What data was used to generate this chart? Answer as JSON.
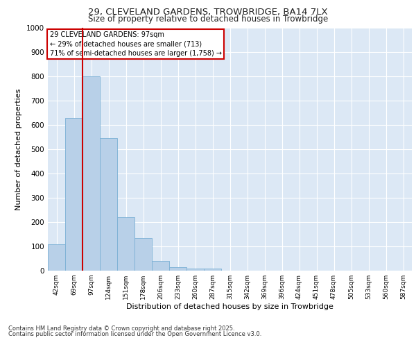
{
  "title_line1": "29, CLEVELAND GARDENS, TROWBRIDGE, BA14 7LX",
  "title_line2": "Size of property relative to detached houses in Trowbridge",
  "xlabel": "Distribution of detached houses by size in Trowbridge",
  "ylabel": "Number of detached properties",
  "categories": [
    "42sqm",
    "69sqm",
    "97sqm",
    "124sqm",
    "151sqm",
    "178sqm",
    "206sqm",
    "233sqm",
    "260sqm",
    "287sqm",
    "315sqm",
    "342sqm",
    "369sqm",
    "396sqm",
    "424sqm",
    "451sqm",
    "478sqm",
    "505sqm",
    "533sqm",
    "560sqm",
    "587sqm"
  ],
  "values": [
    110,
    630,
    800,
    545,
    220,
    135,
    40,
    15,
    10,
    10,
    0,
    0,
    0,
    0,
    0,
    0,
    0,
    0,
    0,
    0,
    0
  ],
  "bar_color": "#b8d0e8",
  "bar_edge_color": "#7aafd4",
  "red_line_index": 2,
  "red_line_color": "#cc0000",
  "ylim": [
    0,
    1000
  ],
  "yticks": [
    0,
    100,
    200,
    300,
    400,
    500,
    600,
    700,
    800,
    900,
    1000
  ],
  "bg_color": "#dce8f5",
  "grid_color": "#ffffff",
  "annotation_title": "29 CLEVELAND GARDENS: 97sqm",
  "annotation_line1": "← 29% of detached houses are smaller (713)",
  "annotation_line2": "71% of semi-detached houses are larger (1,758) →",
  "annotation_box_color": "#cc0000",
  "footnote_line1": "Contains HM Land Registry data © Crown copyright and database right 2025.",
  "footnote_line2": "Contains public sector information licensed under the Open Government Licence v3.0."
}
